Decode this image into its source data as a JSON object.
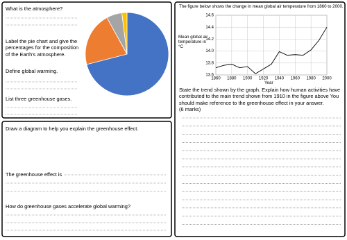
{
  "atmosphere_panel": {
    "question1": "What is the atmosphere?",
    "instruction": "Label the pie chart and give the percentages for the composition of the Earth's atmosphere.",
    "question2": "Define global warming.",
    "question3": "List three greenhouse gases."
  },
  "chart_data": [
    {
      "type": "pie",
      "values": [
        71,
        21,
        6,
        2
      ],
      "colors": [
        "#4472c4",
        "#ed7d31",
        "#a5a5a5",
        "#ffc000"
      ]
    },
    {
      "type": "line",
      "title": "The figure below shows the change in mean global air temperature from 1860 to 2000.",
      "xlabel": "Year",
      "ylabel": "Mean global air temperature in °C",
      "x": [
        1860,
        1870,
        1880,
        1890,
        1900,
        1910,
        1920,
        1930,
        1940,
        1950,
        1960,
        1970,
        1980,
        1990,
        2000
      ],
      "values": [
        13.72,
        13.76,
        13.78,
        13.72,
        13.74,
        13.62,
        13.7,
        13.78,
        13.99,
        13.93,
        13.94,
        13.93,
        14.02,
        14.18,
        14.4
      ],
      "color": "#000000",
      "xlim": [
        1860,
        2000
      ],
      "ylim": [
        13.6,
        14.6
      ],
      "xticks": [
        1860,
        1880,
        1900,
        1920,
        1940,
        1960,
        1980,
        2000
      ],
      "yticks": [
        13.6,
        13.8,
        {
          "value": 14,
          "label": "14.0"
        },
        14.2,
        14.4,
        14.6
      ],
      "grid": true
    }
  ],
  "temperature_panel": {
    "question": "State the trend shown by the graph. Explain how human activities have contributed to the main trend shown from 1910 in the figure above You should make reference to the greenhouse effect in your answer.",
    "marks": "(6 marks)"
  },
  "greenhouse_panel": {
    "instruction": "Draw a diagram to help you explain the greenhouse effect.",
    "sentence_start": "The greenhouse effect is",
    "question": "How do greenhouse gases accelerate global warming?"
  }
}
